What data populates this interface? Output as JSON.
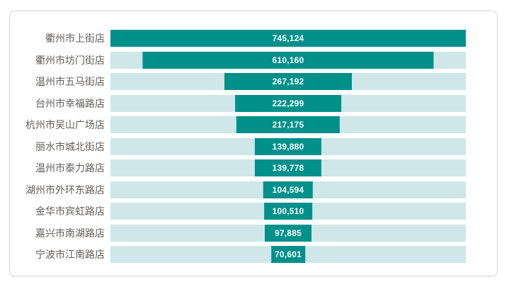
{
  "colors": {
    "bar": "#02908B",
    "track": "#CFE7E9",
    "category_text": "#605E5C",
    "value_text": "#FFFFFF",
    "card_border": "#D9D9D9",
    "background": "#FFFFFF"
  },
  "chart_data": {
    "type": "bar",
    "subtype": "funnel-centered-horizontal",
    "orientation": "horizontal",
    "title": "",
    "xlabel": "",
    "ylabel": "",
    "legend": "none",
    "grid": false,
    "max_value": 745124,
    "categories": [
      "衢州市上街店",
      "衢州市坊门街店",
      "温州市五马街店",
      "台州市幸福路店",
      "杭州市吴山广场店",
      "丽水市城北街店",
      "温州市泰力路店",
      "湖州市外环东路店",
      "金华市宾虹路店",
      "嘉兴市南湖路店",
      "宁波市江南路店"
    ],
    "values": [
      745124,
      610160,
      267192,
      222299,
      217175,
      139880,
      139778,
      104594,
      100510,
      97885,
      70601
    ],
    "value_labels": [
      "745,124",
      "610,160",
      "267,192",
      "222,299",
      "217,175",
      "139,880",
      "139,778",
      "104,594",
      "100,510",
      "97,885",
      "70,601"
    ]
  }
}
